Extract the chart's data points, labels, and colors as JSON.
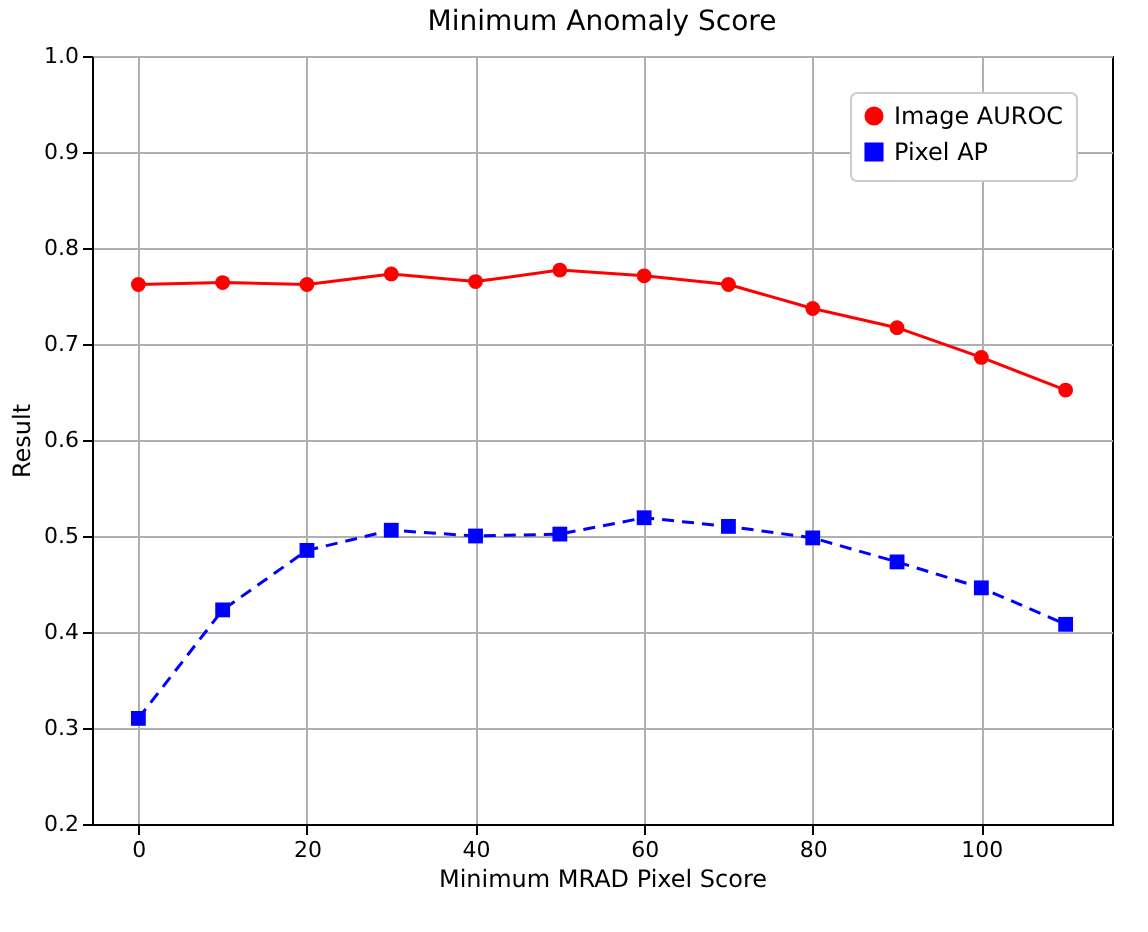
{
  "chart_data": {
    "type": "line",
    "title": "Minimum Anomaly Score",
    "xlabel": "Minimum MRAD Pixel Score",
    "ylabel": "Result",
    "x": [
      0,
      10,
      20,
      30,
      40,
      50,
      60,
      70,
      80,
      90,
      100,
      110
    ],
    "series": [
      {
        "name": "Image AUROC",
        "color": "#ff0000",
        "marker": "circle",
        "line_style": "solid",
        "values": [
          0.762,
          0.764,
          0.762,
          0.773,
          0.765,
          0.777,
          0.771,
          0.762,
          0.737,
          0.717,
          0.686,
          0.652
        ]
      },
      {
        "name": "Pixel AP",
        "color": "#0000ff",
        "marker": "square",
        "line_style": "dashed",
        "values": [
          0.31,
          0.423,
          0.485,
          0.506,
          0.5,
          0.502,
          0.519,
          0.51,
          0.498,
          0.473,
          0.446,
          0.408
        ]
      }
    ],
    "xlim": [
      -5.5,
      115.5
    ],
    "xticks": [
      0,
      20,
      40,
      60,
      80,
      100
    ],
    "ylim": [
      0.2,
      1.0
    ],
    "yticks": [
      0.2,
      0.3,
      0.4,
      0.5,
      0.6,
      0.7,
      0.8,
      0.9,
      {
        "value": 1.0,
        "label": "1.0"
      }
    ],
    "grid": true,
    "legend": "top right"
  }
}
